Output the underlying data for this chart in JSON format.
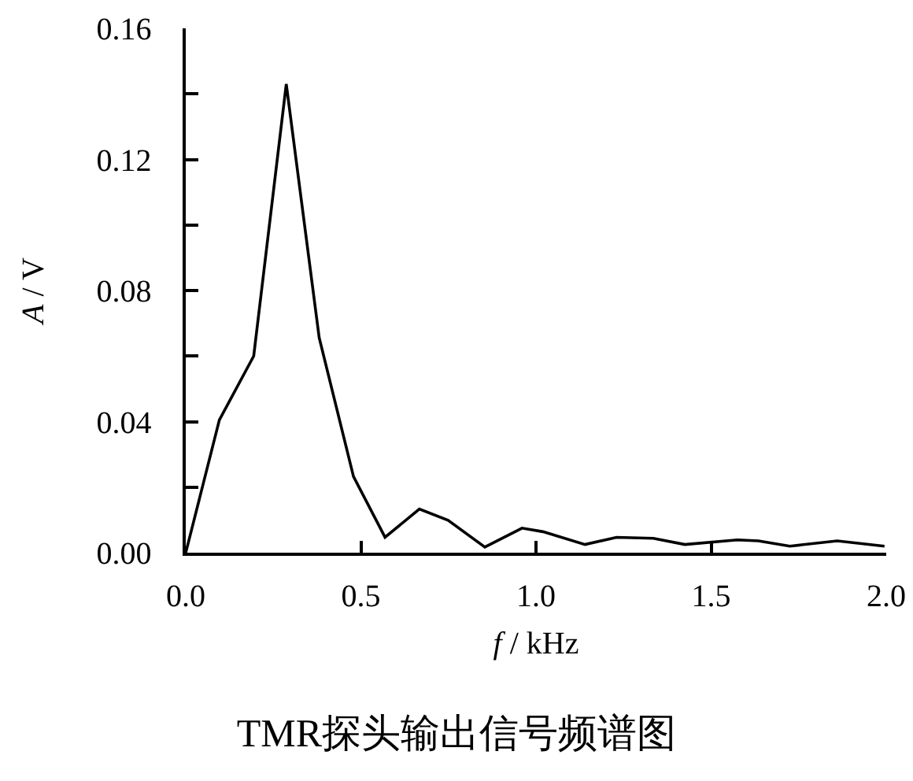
{
  "chart_data": {
    "type": "line",
    "title": "TMR探头输出信号频谱图",
    "xlabel": "f / kHz",
    "ylabel": "A / V",
    "x": [
      0,
      0.096,
      0.194,
      0.287,
      0.381,
      0.479,
      0.569,
      0.667,
      0.749,
      0.854,
      0.96,
      1.02,
      1.14,
      1.23,
      1.335,
      1.425,
      1.575,
      1.635,
      1.725,
      1.86,
      1.995
    ],
    "values": [
      0,
      0.0405,
      0.06,
      0.143,
      0.0656,
      0.0232,
      0.0047,
      0.0133,
      0.0099,
      0.0017,
      0.0075,
      0.0064,
      0.0025,
      0.0047,
      0.0044,
      0.0025,
      0.0039,
      0.0036,
      0.002,
      0.0036,
      0.002
    ],
    "color": "#000000",
    "line_style": "solid",
    "marker": "none",
    "legend": false,
    "xlim": [
      0,
      2.0
    ],
    "xticks": [
      {
        "value": 0,
        "label": "0.0"
      },
      0.5,
      {
        "value": 1.0,
        "label": "1.0"
      },
      1.5,
      {
        "value": 2.0,
        "label": "2.0"
      }
    ],
    "ylim": [
      0,
      0.16
    ],
    "yticks": [
      {
        "value": 0,
        "label": "0.00"
      },
      {
        "value": 0.02,
        "label": null
      },
      0.04,
      {
        "value": 0.06,
        "label": null
      },
      0.08,
      {
        "value": 0.1,
        "label": null
      },
      0.12,
      {
        "value": 0.14,
        "label": null
      },
      0.16
    ]
  }
}
